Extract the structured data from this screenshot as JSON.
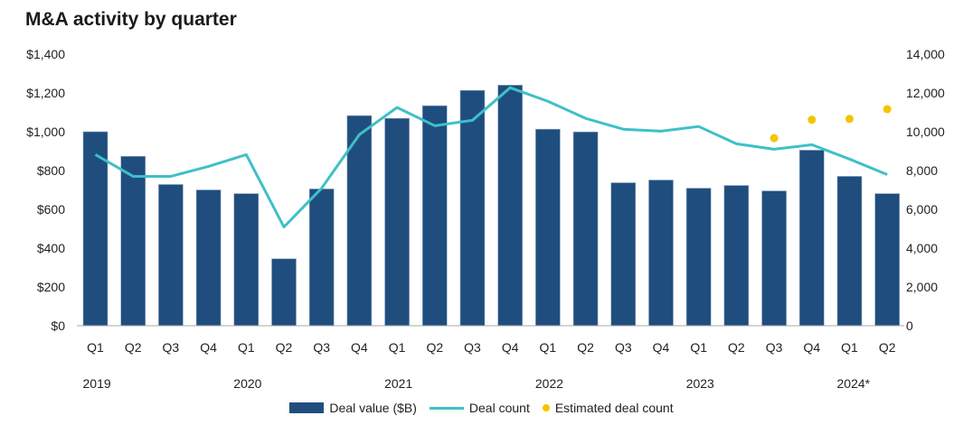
{
  "chart_data": {
    "type": "bar",
    "title": "M&A activity by quarter",
    "categories": [
      "Q1",
      "Q2",
      "Q3",
      "Q4",
      "Q1",
      "Q2",
      "Q3",
      "Q4",
      "Q1",
      "Q2",
      "Q3",
      "Q4",
      "Q1",
      "Q2",
      "Q3",
      "Q4",
      "Q1",
      "Q2",
      "Q3",
      "Q4",
      "Q1",
      "Q2"
    ],
    "years": [
      {
        "label": "2019",
        "index": 0
      },
      {
        "label": "2020",
        "index": 4
      },
      {
        "label": "2021",
        "index": 8
      },
      {
        "label": "2022",
        "index": 12
      },
      {
        "label": "2023",
        "index": 16
      },
      {
        "label": "2024*",
        "index": 20
      }
    ],
    "left_axis": {
      "ticks": [
        "$0",
        "$200",
        "$400",
        "$600",
        "$800",
        "$1,000",
        "$1,200",
        "$1,400"
      ],
      "ylim": [
        0,
        1400
      ]
    },
    "right_axis": {
      "ticks": [
        "0",
        "2,000",
        "4,000",
        "6,000",
        "8,000",
        "10,000",
        "12,000",
        "14,000"
      ],
      "ylim": [
        0,
        14000
      ]
    },
    "grid": false,
    "legend_position": "bottom",
    "series": [
      {
        "name": "Deal value ($B)",
        "type": "bar",
        "axis": "left",
        "color": "#1f4e7e",
        "values": [
          1000,
          873,
          728,
          700,
          681,
          345,
          705,
          1083,
          1069,
          1134,
          1213,
          1240,
          1013,
          999,
          737,
          751,
          709,
          723,
          695,
          905,
          770,
          681
        ]
      },
      {
        "name": "Deal count",
        "type": "line",
        "axis": "right",
        "color": "#3ec0c8",
        "values": [
          8820,
          7700,
          7700,
          8210,
          8820,
          5090,
          7090,
          9850,
          11250,
          10310,
          10590,
          12270,
          11570,
          10690,
          10130,
          10030,
          10270,
          9380,
          9100,
          9330,
          8590,
          7790
        ]
      },
      {
        "name": "Estimated deal count",
        "type": "scatter",
        "axis": "right",
        "color": "#f5c400",
        "values": [
          null,
          null,
          null,
          null,
          null,
          null,
          null,
          null,
          null,
          null,
          null,
          null,
          null,
          null,
          null,
          null,
          null,
          null,
          9670,
          10620,
          10660,
          11160
        ]
      }
    ]
  }
}
